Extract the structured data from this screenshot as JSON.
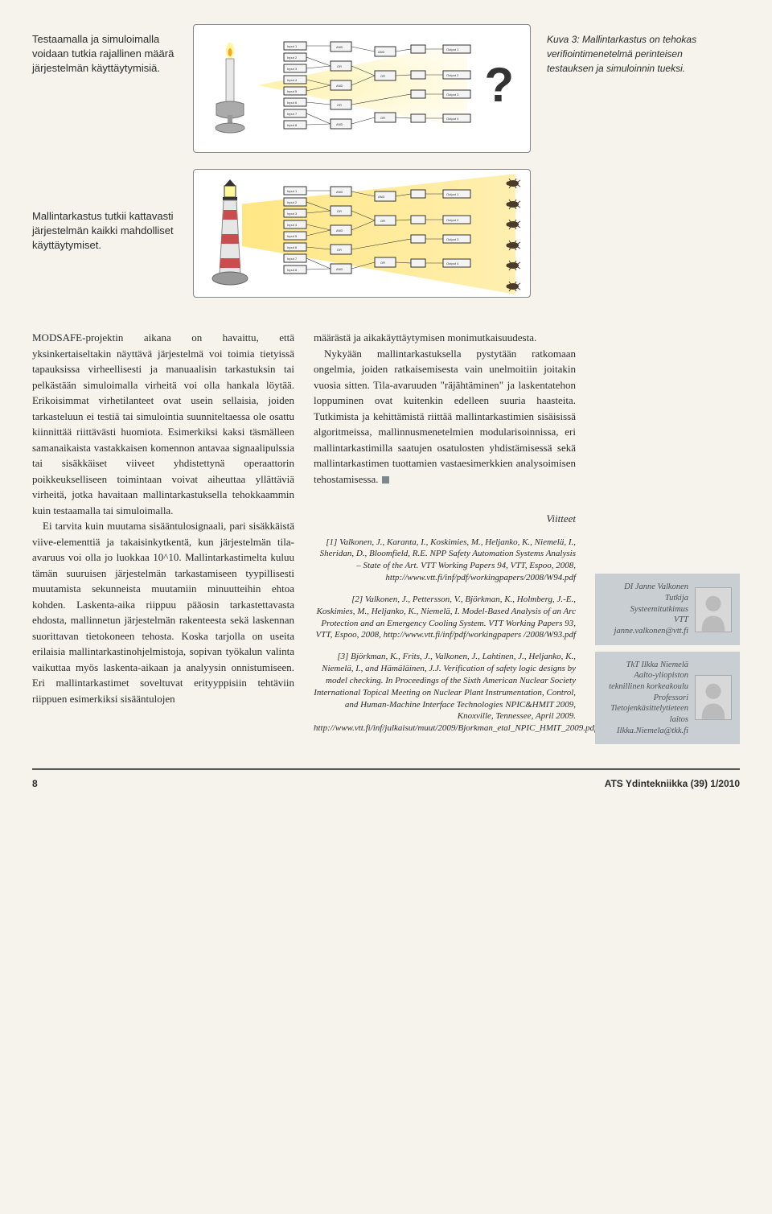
{
  "figure": {
    "row1_text": "Testaamalla ja simuloimalla voidaan tutkia rajallinen määrä järjestelmän käyttäytymisiä.",
    "row2_text": "Mallintarkastus tutkii kattavasti järjestelmän kaikki mahdolliset käyttäytymiset.",
    "caption": "Kuva 3: Mallintarkastus on tehokas verifiointimenetelmä perinteisen testauksen ja simuloinnin tueksi.",
    "qmark": "?",
    "box_bg": "#ffffff",
    "box_border": "#888888",
    "beam_color": "rgba(255,220,80,0.6)",
    "diagram": {
      "inputs": [
        "Input 1",
        "Input 2",
        "Input 3",
        "Input 4",
        "Input 5",
        "Input 6",
        "Input 7",
        "Input 8"
      ],
      "gates": [
        "AND",
        "OR",
        "AND",
        "OR",
        "AND",
        "OR",
        "AND"
      ],
      "outputs": [
        "Output 1",
        "Output 2",
        "Output 3",
        "Output 4"
      ],
      "box_fill": "#f4f4f4",
      "box_stroke": "#333333",
      "wire_stroke": "#333333",
      "label_fontsize": 4
    },
    "candle": {
      "flame_colors": [
        "#fff799",
        "#f5a623"
      ],
      "candle_color": "#e8e8e8",
      "holder_color": "#8a8a8a"
    },
    "lighthouse": {
      "base_color": "#e6e6e6",
      "stripe_color": "#c94d4d",
      "roof_color": "#333333",
      "light_color": "#fff799"
    },
    "bug_count": 6,
    "bug_color": "#4a3a2a"
  },
  "article": {
    "col1_paragraphs": [
      "MODSAFE-projektin aikana on havaittu, että yksinkertaiseltakin näyttävä järjestelmä voi toimia tietyissä tapauksissa virheellisesti ja manuaalisin tarkastuksin tai pelkästään simuloimalla virheitä voi olla hankala löytää. Erikoisimmat virhetilanteet ovat usein sellaisia, joiden tarkasteluun ei testiä tai simulointia suunniteltaessa ole osattu kiinnittää riittävästi huomiota. Esimerkiksi kaksi täsmälleen samanaikaista vastakkaisen komennon antavaa signaalipulssia tai sisäkkäiset viiveet yhdistettynä operaattorin poikkeukselliseen toimintaan voivat aiheuttaa yllättäviä virheitä, jotka havaitaan mallintarkastuksella tehokkaammin kuin testaamalla tai simuloimalla.",
      "Ei tarvita kuin muutama sisääntulosignaali, pari sisäkkäistä viive-elementtiä ja takaisinkytkentä, kun järjestelmän tila-avaruus voi olla jo luokkaa 10^10. Mallintarkastimelta kuluu tämän suuruisen järjestelmän tarkastamiseen tyypillisesti muutamista sekunneista muutamiin minuutteihin ehtoa kohden. Laskenta-aika riippuu pääosin tarkastettavasta ehdosta, mallinnetun järjestelmän rakenteesta sekä laskennan suorittavan tietokoneen tehosta. Koska tarjolla on useita erilaisia mallintarkastinohjelmistoja, sopivan työkalun valinta vaikuttaa myös laskenta-aikaan ja analyysin onnistumiseen. Eri mallintarkastimet soveltuvat erityyppisiin tehtäviin riippuen esimerkiksi sisääntulojen"
    ],
    "col2_para1": "määrästä ja aikakäyttäytymisen monimutkaisuudesta.",
    "col2_para2": "Nykyään mallintarkastuksella pystytään ratkomaan ongelmia, joiden ratkaisemisesta vain unelmoitiin joitakin vuosia sitten. Tila-avaruuden \"räjähtäminen\" ja laskentatehon loppuminen ovat kuitenkin edelleen suuria haasteita. Tutkimista ja kehittämistä riittää mallintarkastimien sisäisissä algoritmeissa, mallinnusmenetelmien modularisoinnissa, eri mallintarkastimilla saatujen osatulosten yhdistämisessä sekä mallintarkastimen tuottamien vastaesimerkkien analysoimisen tehostamisessa.",
    "refs_title": "Viitteet",
    "refs": [
      "[1] Valkonen, J., Karanta, I., Koskimies, M., Heljanko, K., Niemelä, I., Sheridan, D., Bloomfield, R.E. NPP Safety Automation Systems Analysis – State of the Art. VTT Working Papers 94, VTT, Espoo, 2008, http://www.vtt.fi/inf/pdf/workingpapers/2008/W94.pdf",
      "[2] Valkonen, J., Pettersson, V., Björkman, K., Holmberg, J.-E., Koskimies, M., Heljanko, K., Niemelä, I. Model-Based Analysis of an Arc Protection and an Emergency Cooling System. VTT Working Papers 93, VTT, Espoo, 2008, http://www.vtt.fi/inf/pdf/workingpapers /2008/W93.pdf",
      "[3] Björkman, K., Frits, J., Valkonen, J., Lahtinen, J., Heljanko, K., Niemelä, I., and Hämäläinen, J.J. Verification of safety logic designs by model checking. In Proceedings of the Sixth American Nuclear Society International Topical Meeting on Nuclear Plant Instrumentation, Control, and Human-Machine Interface Technologies NPIC&HMIT 2009, Knoxville, Tennessee, April 2009. http://www.vtt.fi/inf/julkaisut/muut/2009/Bjorkman_etal_NPIC_HMIT_2009.pdf"
    ]
  },
  "authors": [
    {
      "lines": [
        "DI Janne Valkonen",
        "Tutkija",
        "Systeemitutkimus",
        "VTT",
        "janne.valkonen@vtt.fi"
      ]
    },
    {
      "lines": [
        "TkT Ilkka Niemelä",
        "Aalto-yliopiston teknillinen korkeakoulu",
        "Professori",
        "Tietojenkäsittelytieteen laitos",
        "Ilkka.Niemela@tkk.fi"
      ]
    }
  ],
  "footer": {
    "page": "8",
    "journal": "ATS Ydintekniikka (39) 1/2010"
  },
  "colors": {
    "page_bg": "#f5f3ec",
    "text": "#2a2a2a",
    "author_card_bg": "#c9ced3",
    "author_card_text": "#4a5055",
    "footer_rule": "#5a5a5a"
  }
}
